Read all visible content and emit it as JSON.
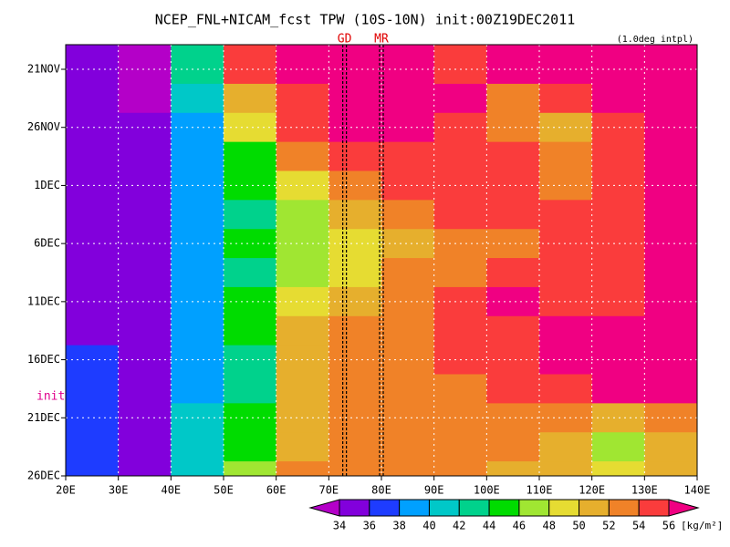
{
  "chart_data": {
    "type": "heatmap",
    "title": "NCEP_FNL+NICAM_fcst TPW (10S-10N) init:00Z19DEC2011",
    "subtitle": "(1.0deg intpl)",
    "annotation": "init",
    "colorbar_unit": "[kg/m²]",
    "xlim": [
      20,
      140
    ],
    "xticks": [
      {
        "value": 20,
        "label": "20E"
      },
      {
        "value": 30,
        "label": "30E"
      },
      {
        "value": 40,
        "label": "40E"
      },
      {
        "value": 50,
        "label": "50E"
      },
      {
        "value": 60,
        "label": "60E"
      },
      {
        "value": 70,
        "label": "70E"
      },
      {
        "value": 80,
        "label": "80E"
      },
      {
        "value": 90,
        "label": "90E"
      },
      {
        "value": 100,
        "label": "100E"
      },
      {
        "value": 110,
        "label": "110E"
      },
      {
        "value": 120,
        "label": "120E"
      },
      {
        "value": 130,
        "label": "130E"
      },
      {
        "value": 140,
        "label": "140E"
      }
    ],
    "x": [
      25,
      35,
      45,
      55,
      65,
      75,
      85,
      95,
      105,
      115,
      125,
      135
    ],
    "categories": [
      "21NOV",
      null,
      "26NOV",
      null,
      "1DEC",
      null,
      "6DEC",
      null,
      "11DEC",
      null,
      "16DEC",
      null,
      "21DEC",
      null,
      "26DEC"
    ],
    "values": [
      [
        34,
        33,
        42,
        54,
        56,
        57,
        57,
        55,
        56,
        56,
        57,
        56
      ],
      [
        34,
        33,
        40,
        51,
        55,
        56,
        57,
        56,
        53,
        54,
        56,
        57
      ],
      [
        35,
        34,
        39,
        48,
        54,
        56,
        56,
        55,
        52,
        51,
        55,
        57
      ],
      [
        35,
        34,
        38,
        45,
        52,
        54,
        55,
        55,
        54,
        52,
        55,
        56
      ],
      [
        35,
        34,
        38,
        44,
        49,
        52,
        54,
        55,
        54,
        53,
        55,
        56
      ],
      [
        35,
        34,
        38,
        43,
        47,
        50,
        52,
        54,
        54,
        54,
        55,
        56
      ],
      [
        35,
        34,
        39,
        44,
        46,
        49,
        51,
        53,
        53,
        54,
        55,
        57
      ],
      [
        35,
        34,
        39,
        43,
        47,
        49,
        52,
        53,
        54,
        55,
        55,
        57
      ],
      [
        35,
        34,
        38,
        45,
        49,
        51,
        53,
        54,
        56,
        55,
        55,
        57
      ],
      [
        35,
        34,
        38,
        44,
        50,
        52,
        53,
        54,
        55,
        56,
        57,
        57
      ],
      [
        36,
        34,
        38,
        43,
        51,
        52,
        53,
        54,
        55,
        56,
        57,
        57
      ],
      [
        36,
        34,
        39,
        42,
        50,
        52,
        53,
        53,
        54,
        54,
        56,
        57
      ],
      [
        37,
        35,
        40,
        44,
        50,
        52,
        53,
        53,
        53,
        52,
        50,
        53
      ],
      [
        37,
        35,
        40,
        45,
        51,
        52,
        52,
        52,
        52,
        51,
        47,
        51
      ],
      [
        37,
        35,
        40,
        46,
        52,
        52,
        52,
        52,
        51,
        50,
        48,
        50
      ]
    ],
    "levels": [
      34,
      36,
      38,
      40,
      42,
      44,
      46,
      48,
      50,
      52,
      54,
      56
    ],
    "colors": [
      "#b400c8",
      "#8200dc",
      "#1e3cff",
      "#00a0ff",
      "#00c8c8",
      "#00d28c",
      "#00dc00",
      "#a0e632",
      "#e6dc32",
      "#e6af2d",
      "#f08228",
      "#fa3c3c",
      "#f00082"
    ],
    "markers": [
      {
        "label": "GD",
        "x": 73
      },
      {
        "label": "MR",
        "x": 80
      }
    ],
    "grid": true
  }
}
